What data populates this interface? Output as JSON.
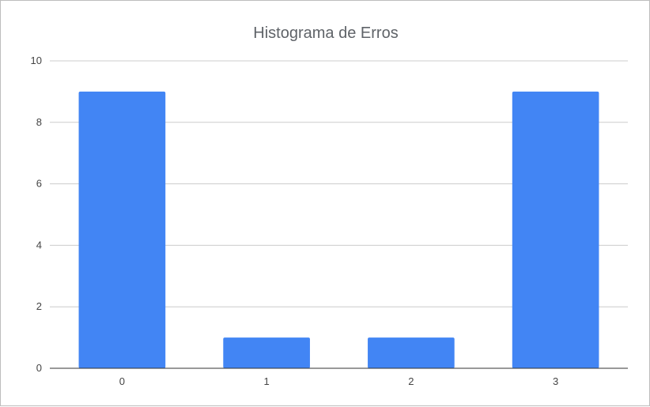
{
  "chart_data": {
    "type": "bar",
    "title": "Histograma de Erros",
    "xlabel": "",
    "ylabel": "",
    "categories": [
      "0",
      "1",
      "2",
      "3"
    ],
    "values": [
      9,
      1,
      1,
      9
    ],
    "ylim": [
      0,
      10
    ],
    "yticks": [
      "0",
      "2",
      "4",
      "6",
      "8",
      "10"
    ],
    "grid": true,
    "legend": "none",
    "bar_color": "#4285f4",
    "grid_color": "#cccccc",
    "axis_color": "#333333"
  }
}
